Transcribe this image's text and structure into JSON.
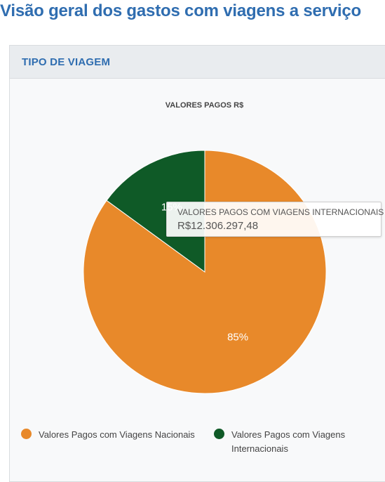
{
  "page": {
    "title": "Visão geral dos gastos com viagens a serviço"
  },
  "card": {
    "header": "TIPO DE VIAGEM"
  },
  "chart_data": {
    "type": "pie",
    "title": "VALORES PAGOS R$",
    "categories": [
      "Valores Pagos com Viagens Nacionais",
      "Valores Pagos com Viagens Internacionais"
    ],
    "values": [
      85,
      15
    ],
    "value_unit": "%",
    "data_labels": [
      "85%",
      "15%"
    ],
    "colors": [
      "#e8892a",
      "#0f5a27"
    ],
    "legend_placement": "bottom"
  },
  "tooltip": {
    "label": "VALORES PAGOS COM VIAGENS INTERNACIONAIS",
    "value": "R$12.306.297,48"
  },
  "legend": {
    "items": [
      {
        "label": "Valores Pagos com Viagens Nacionais",
        "color": "#e8892a"
      },
      {
        "label": "Valores Pagos com Viagens Internacionais",
        "color": "#0f5a27"
      }
    ]
  }
}
